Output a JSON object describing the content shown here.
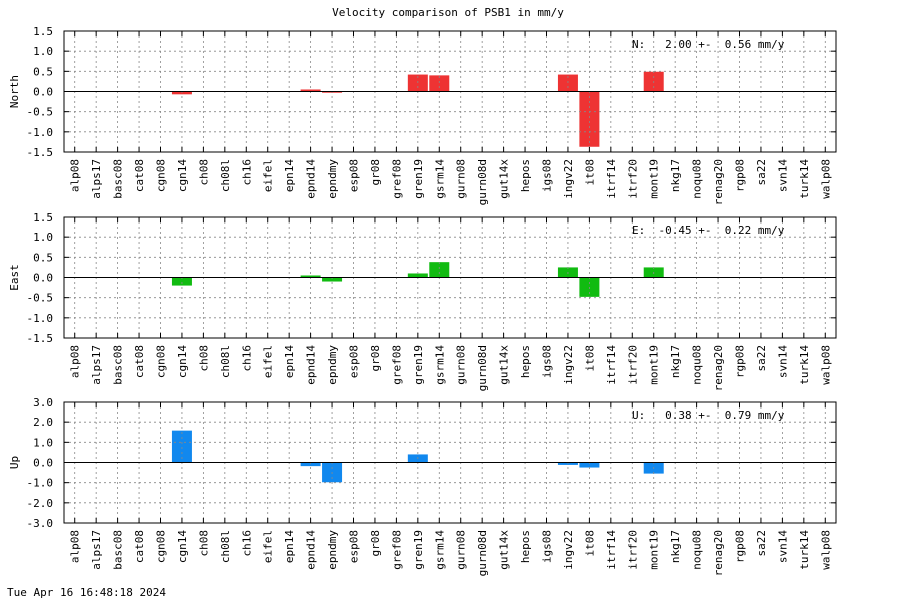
{
  "figure": {
    "title": "Velocity comparison of PSB1 in mm/y",
    "timestamp": "Tue Apr 16 16:48:18 2024"
  },
  "chart_data": [
    {
      "type": "bar",
      "ylabel": "North",
      "ylim": [
        -1.5,
        1.5
      ],
      "yticks": [
        "1.5",
        "1.0",
        "0.5",
        "0.0",
        "-0.5",
        "-1.0",
        "-1.5"
      ],
      "annotation": "N:   2.00 +-  0.56 mm/y",
      "color": "#ee3333",
      "grid": true,
      "categories": [
        "alp08",
        "alps17",
        "basc08",
        "cat08",
        "cgn08",
        "cgn14",
        "ch08",
        "ch08l",
        "ch16",
        "eifel",
        "epn14",
        "epnd14",
        "epndmy",
        "esp08",
        "gr08",
        "gref08",
        "gren19",
        "gsrm14",
        "gurn08",
        "gurn08d",
        "gut14x",
        "hepos",
        "igs08",
        "ingv22",
        "it08",
        "itrf14",
        "itrf20",
        "mont19",
        "nkg17",
        "noqu08",
        "renag20",
        "rgp08",
        "sa22",
        "svn14",
        "turk14",
        "walp08"
      ],
      "values": [
        null,
        null,
        null,
        null,
        null,
        -0.07,
        null,
        null,
        null,
        null,
        null,
        0.05,
        -0.03,
        null,
        null,
        null,
        0.42,
        0.4,
        null,
        null,
        null,
        null,
        null,
        0.42,
        -1.37,
        null,
        null,
        0.49,
        null,
        null,
        null,
        null,
        null,
        null,
        null,
        null
      ]
    },
    {
      "type": "bar",
      "ylabel": "East",
      "ylim": [
        -1.5,
        1.5
      ],
      "yticks": [
        "1.5",
        "1.0",
        "0.5",
        "0.0",
        "-0.5",
        "-1.0",
        "-1.5"
      ],
      "annotation": "E:  -0.45 +-  0.22 mm/y",
      "color": "#11bb11",
      "grid": true,
      "categories": [
        "alp08",
        "alps17",
        "basc08",
        "cat08",
        "cgn08",
        "cgn14",
        "ch08",
        "ch08l",
        "ch16",
        "eifel",
        "epn14",
        "epnd14",
        "epndmy",
        "esp08",
        "gr08",
        "gref08",
        "gren19",
        "gsrm14",
        "gurn08",
        "gurn08d",
        "gut14x",
        "hepos",
        "igs08",
        "ingv22",
        "it08",
        "itrf14",
        "itrf20",
        "mont19",
        "nkg17",
        "noqu08",
        "renag20",
        "rgp08",
        "sa22",
        "svn14",
        "turk14",
        "walp08"
      ],
      "values": [
        null,
        null,
        null,
        null,
        null,
        -0.2,
        null,
        null,
        null,
        null,
        null,
        0.05,
        -0.1,
        null,
        null,
        null,
        0.1,
        0.38,
        null,
        null,
        null,
        null,
        null,
        0.25,
        -0.48,
        null,
        null,
        0.25,
        null,
        null,
        null,
        null,
        null,
        null,
        null,
        null
      ]
    },
    {
      "type": "bar",
      "ylabel": "Up",
      "ylim": [
        -3.0,
        3.0
      ],
      "yticks": [
        "3.0",
        "2.0",
        "1.0",
        "0.0",
        "-1.0",
        "-2.0",
        "-3.0"
      ],
      "annotation": "U:   0.38 +-  0.79 mm/y",
      "color": "#1188ee",
      "grid": true,
      "categories": [
        "alp08",
        "alps17",
        "basc08",
        "cat08",
        "cgn08",
        "cgn14",
        "ch08",
        "ch08l",
        "ch16",
        "eifel",
        "epn14",
        "epnd14",
        "epndmy",
        "esp08",
        "gr08",
        "gref08",
        "gren19",
        "gsrm14",
        "gurn08",
        "gurn08d",
        "gut14x",
        "hepos",
        "igs08",
        "ingv22",
        "it08",
        "itrf14",
        "itrf20",
        "mont19",
        "nkg17",
        "noqu08",
        "renag20",
        "rgp08",
        "sa22",
        "svn14",
        "turk14",
        "walp08"
      ],
      "values": [
        null,
        null,
        null,
        null,
        null,
        1.58,
        null,
        null,
        null,
        null,
        null,
        -0.18,
        -0.98,
        null,
        null,
        null,
        0.4,
        null,
        null,
        null,
        null,
        null,
        null,
        -0.12,
        -0.25,
        null,
        null,
        -0.55,
        null,
        null,
        null,
        null,
        null,
        null,
        null,
        null
      ]
    }
  ]
}
